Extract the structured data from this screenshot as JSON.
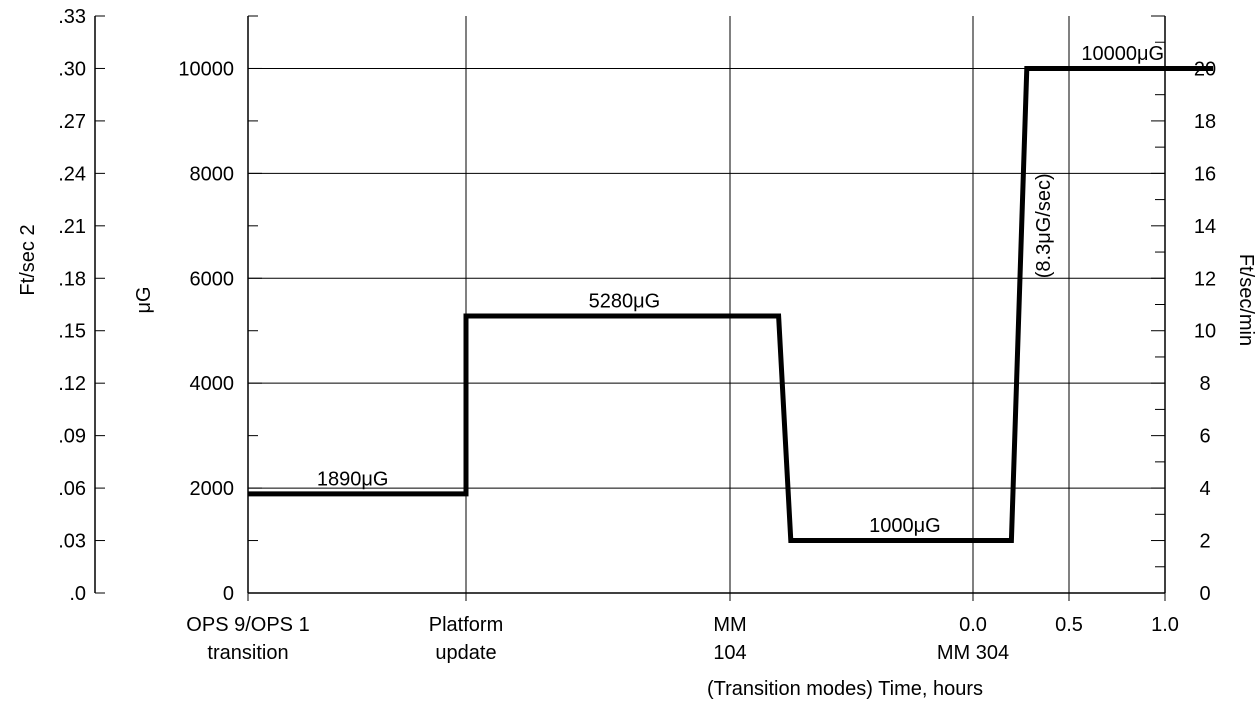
{
  "chart_data": {
    "type": "line",
    "title": "",
    "xlabel": "(Transition modes) Time, hours",
    "ylabel_left_outer": "Ft/sec 2",
    "ylabel_left_inner": "μG",
    "ylabel_right": "Ft/sec/min",
    "x_categories": [
      {
        "lines": [
          "OPS 9/OPS 1",
          "transition"
        ]
      },
      {
        "lines": [
          "Platform",
          "update"
        ]
      },
      {
        "lines": [
          "MM",
          "104"
        ]
      },
      {
        "lines": [
          "0.0",
          "MM 304"
        ]
      }
    ],
    "x_time_ticks": [
      "0.5",
      "1.0"
    ],
    "y_ug": {
      "ticks": [
        "0",
        "2000",
        "4000",
        "6000",
        "8000",
        "10000"
      ],
      "range": [
        0,
        11000
      ]
    },
    "y_ft_sec2": {
      "ticks": [
        ".0",
        ".03",
        ".06",
        ".09",
        ".12",
        ".15",
        ".18",
        ".21",
        ".24",
        ".27",
        ".30",
        ".33"
      ],
      "range": [
        0,
        0.33
      ]
    },
    "y_ft_sec_min": {
      "ticks": [
        "0",
        "2",
        "4",
        "6",
        "8",
        "10",
        "12",
        "14",
        "16",
        "18",
        "20"
      ],
      "range": [
        0,
        22
      ]
    },
    "grid": true,
    "series": [
      {
        "points": [
          {
            "x": 0.0,
            "y": 1890
          },
          {
            "x": 1.0,
            "y": 1890
          },
          {
            "x": 1.0,
            "y": 5280
          },
          {
            "x": 2.2,
            "y": 5280
          },
          {
            "x": 2.25,
            "y": 1000
          },
          {
            "x": 3.2,
            "y": 1000
          },
          {
            "x": 3.28,
            "y": 10000
          },
          {
            "x": 4.25,
            "y": 10000
          }
        ]
      }
    ],
    "annotations": [
      {
        "text": "1890μG",
        "x": 0.48,
        "y": 2050
      },
      {
        "text": "5280μG",
        "x": 1.6,
        "y": 5440
      },
      {
        "text": "1000μG",
        "x": 2.72,
        "y": 1160
      },
      {
        "text": "10000μG",
        "x": 3.78,
        "y": 10160
      },
      {
        "text": "(8.3μG/sec)",
        "x": 3.4,
        "y": 7000,
        "rotate": -90
      }
    ]
  }
}
